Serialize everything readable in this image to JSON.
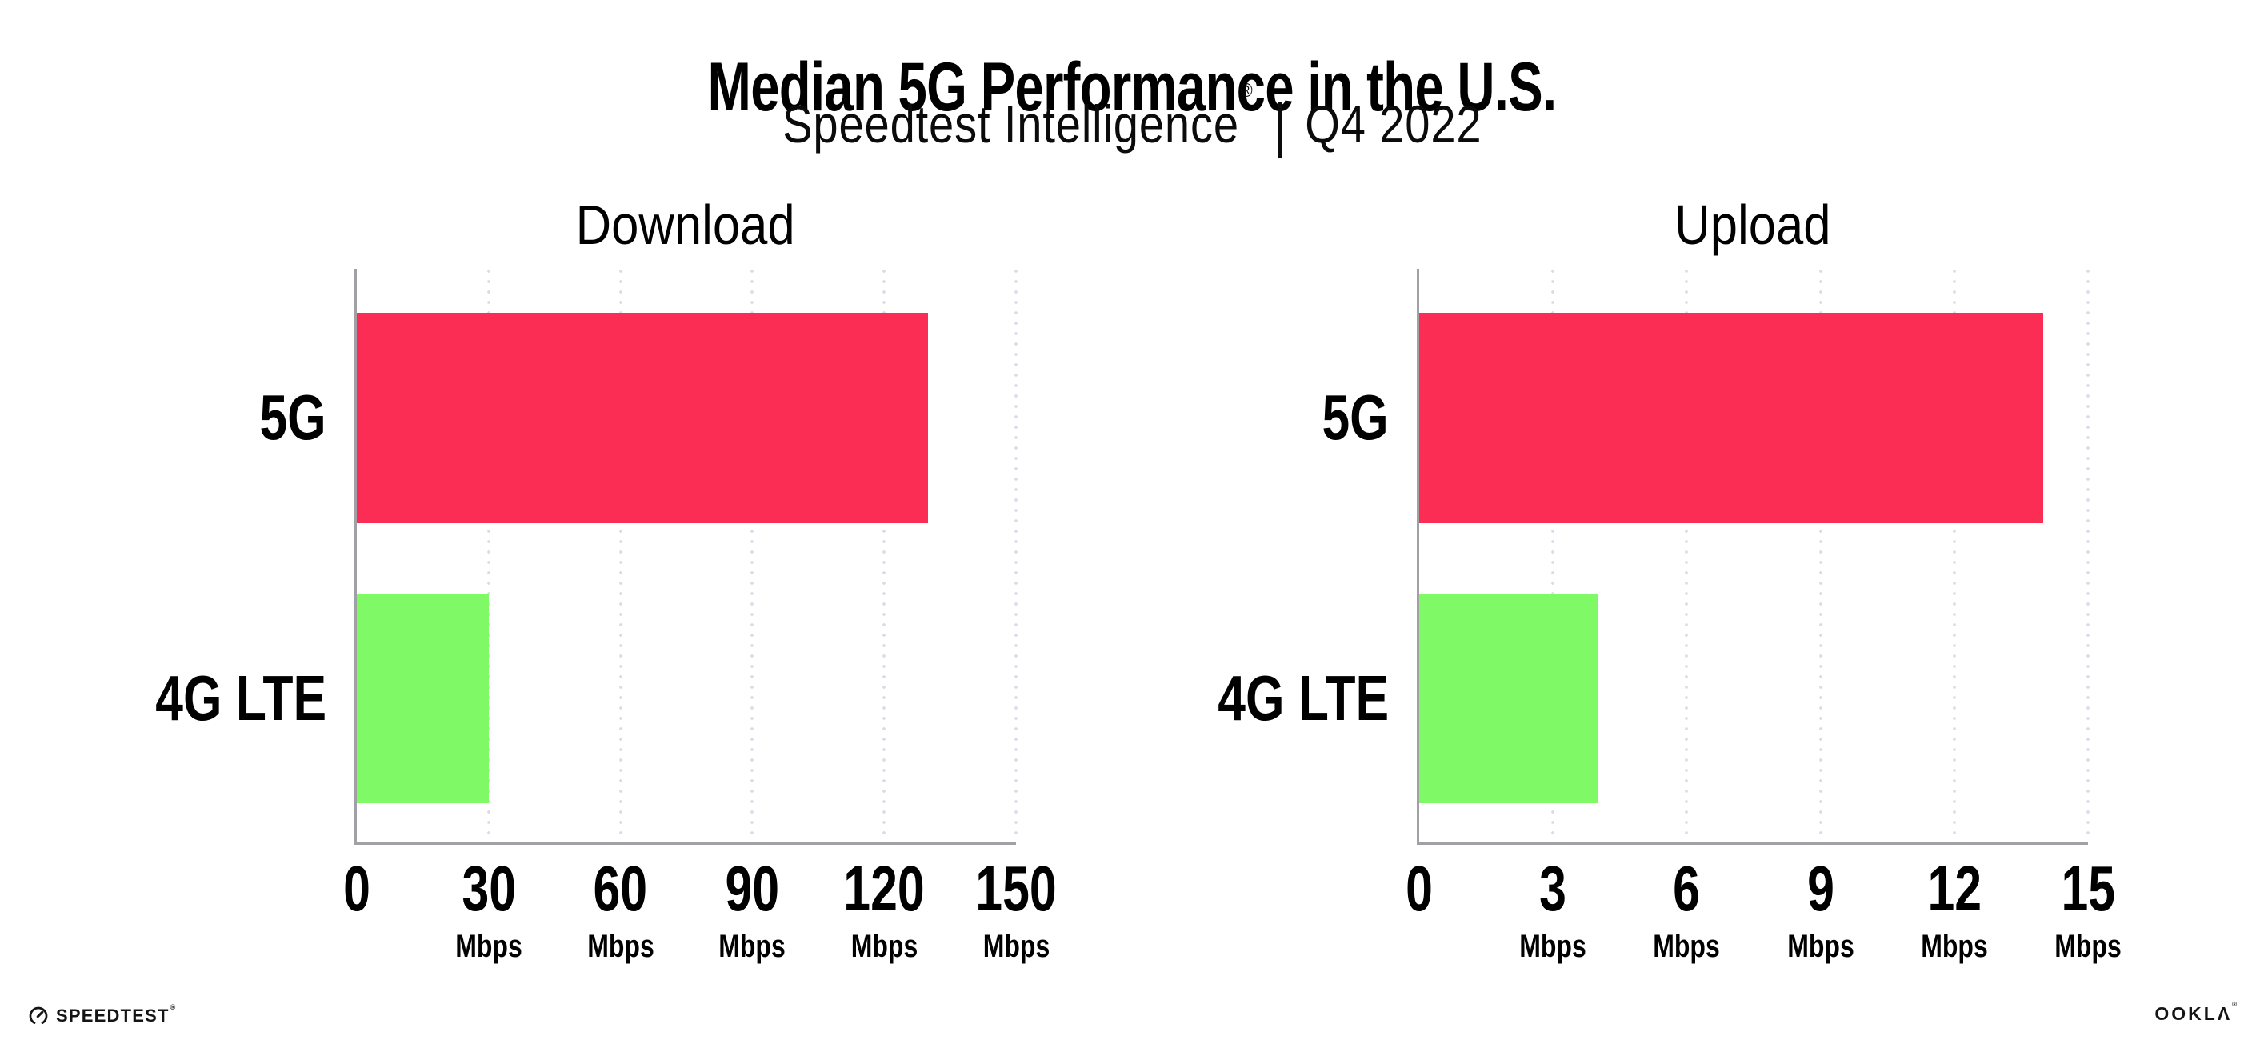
{
  "header": {
    "title": "Median 5G Performance in the U.S.",
    "subtitle_product": "Speedtest Intelligence",
    "subtitle_reg": "®",
    "subtitle_separator": "|",
    "subtitle_period": "Q4 2022"
  },
  "footer": {
    "speedtest_wordmark": "SPEEDTEST",
    "speedtest_reg": "®",
    "ookla_wordmark": "OOKLΛ",
    "ookla_reg": "®"
  },
  "colors": {
    "bar_5g": "#FC2D54",
    "bar_4g_lte": "#7FFA66",
    "axis": "#A0A0A5",
    "gridline": "#DBDBE7",
    "text": "#000000",
    "logo": "#141414"
  },
  "chart_data": [
    {
      "type": "bar",
      "orientation": "horizontal",
      "title": "Download",
      "categories": [
        "5G",
        "4G LTE"
      ],
      "values": [
        130,
        30
      ],
      "unit": "Mbps",
      "xlabel": "",
      "ylabel": "",
      "xlim": [
        0,
        150
      ],
      "xticks": [
        0,
        30,
        60,
        90,
        120,
        150
      ],
      "bar_colors": [
        "#FC2D54",
        "#7FFA66"
      ],
      "grid": "vertical dotted",
      "legend": "none"
    },
    {
      "type": "bar",
      "orientation": "horizontal",
      "title": "Upload",
      "categories": [
        "5G",
        "4G LTE"
      ],
      "values": [
        14,
        4
      ],
      "unit": "Mbps",
      "xlabel": "",
      "ylabel": "",
      "xlim": [
        0,
        15
      ],
      "xticks": [
        0,
        3,
        6,
        9,
        12,
        15
      ],
      "bar_colors": [
        "#FC2D54",
        "#7FFA66"
      ],
      "grid": "vertical dotted",
      "legend": "none"
    }
  ]
}
